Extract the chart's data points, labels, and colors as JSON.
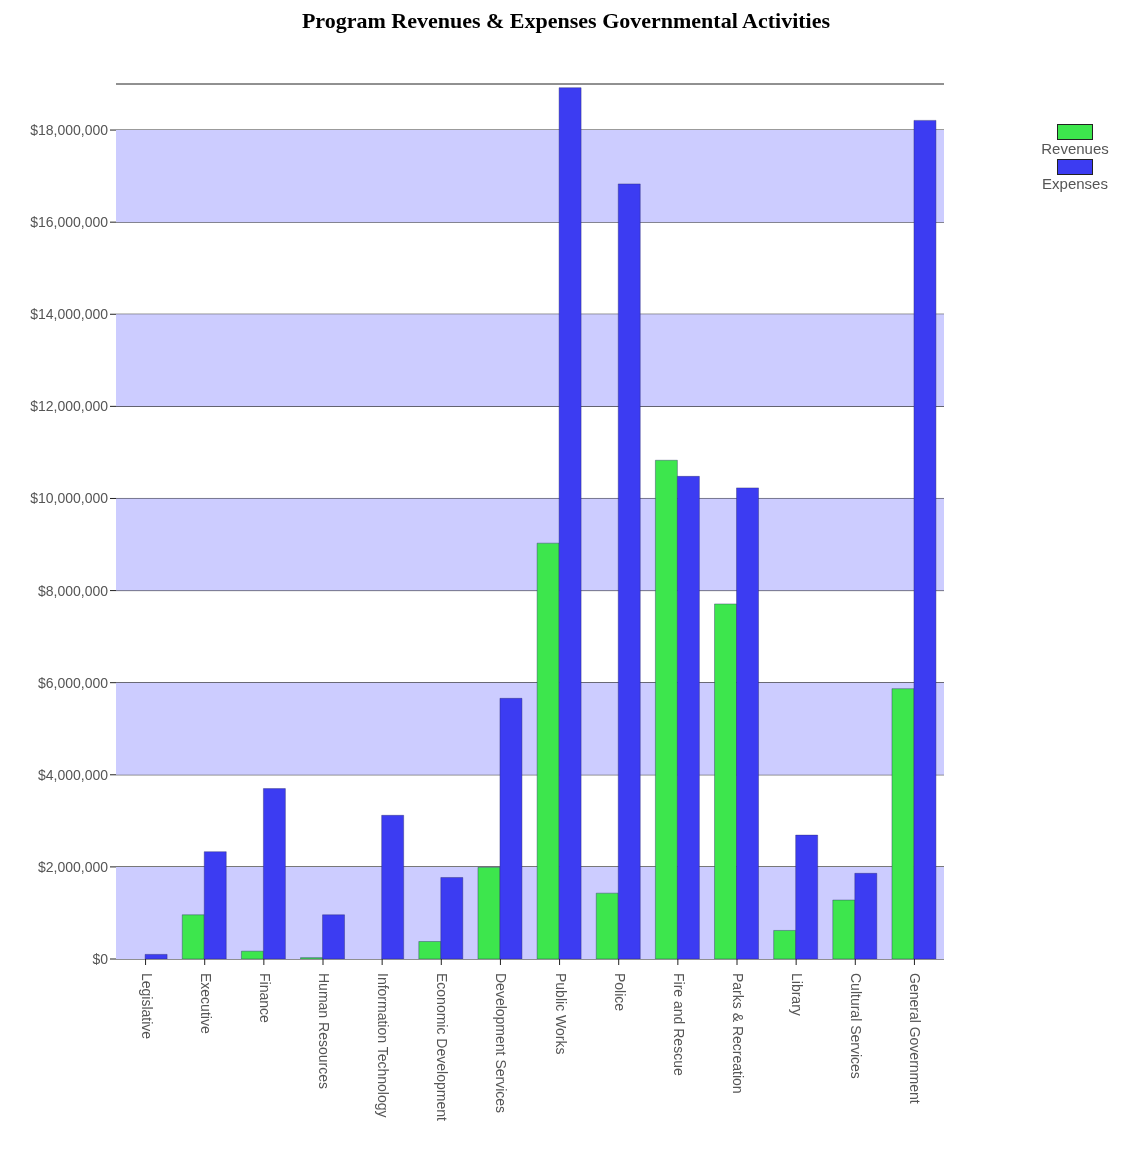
{
  "chart_data": {
    "type": "bar",
    "title": "Program Revenues & Expenses Governmental Activities",
    "categories": [
      "Legislative",
      "Executive",
      "Finance",
      "Human Resources",
      "Information Technology",
      "Economic Development",
      "Development Services",
      "Public Works",
      "Police",
      "Fire and Rescue",
      "Parks & Recreation",
      "Library",
      "Cultural Services",
      "General Government"
    ],
    "series": [
      {
        "name": "Revenues",
        "color": "#3de64d",
        "values": [
          0,
          960000,
          170000,
          30000,
          0,
          380000,
          1990000,
          9030000,
          1430000,
          10830000,
          7710000,
          620000,
          1280000,
          5870000
        ]
      },
      {
        "name": "Expenses",
        "color": "#3c3cf2",
        "values": [
          100000,
          2330000,
          3700000,
          960000,
          3120000,
          1770000,
          5660000,
          18920000,
          16830000,
          10480000,
          10230000,
          2690000,
          1860000,
          18210000
        ]
      }
    ],
    "ylim": [
      0,
      19000000
    ],
    "yticks": [
      {
        "value": 0,
        "label": "$0"
      },
      {
        "value": 2000000,
        "label": "$2,000,000"
      },
      {
        "value": 4000000,
        "label": "$4,000,000"
      },
      {
        "value": 6000000,
        "label": "$6,000,000"
      },
      {
        "value": 8000000,
        "label": "$8,000,000"
      },
      {
        "value": 10000000,
        "label": "$10,000,000"
      },
      {
        "value": 12000000,
        "label": "$12,000,000"
      },
      {
        "value": 14000000,
        "label": "$14,000,000"
      },
      {
        "value": 16000000,
        "label": "$16,000,000"
      },
      {
        "value": 18000000,
        "label": "$18,000,000"
      }
    ],
    "bands": [
      {
        "axis": "y",
        "from": 0,
        "to": 2000000,
        "color": "#ccccff"
      },
      {
        "axis": "y",
        "from": 4000000,
        "to": 6000000,
        "color": "#ccccff"
      },
      {
        "axis": "y",
        "from": 8000000,
        "to": 10000000,
        "color": "#ccccff"
      },
      {
        "axis": "y",
        "from": 12000000,
        "to": 14000000,
        "color": "#ccccff"
      },
      {
        "axis": "y",
        "from": 16000000,
        "to": 18000000,
        "color": "#ccccff"
      }
    ],
    "grid": "y",
    "legend": "top right"
  }
}
